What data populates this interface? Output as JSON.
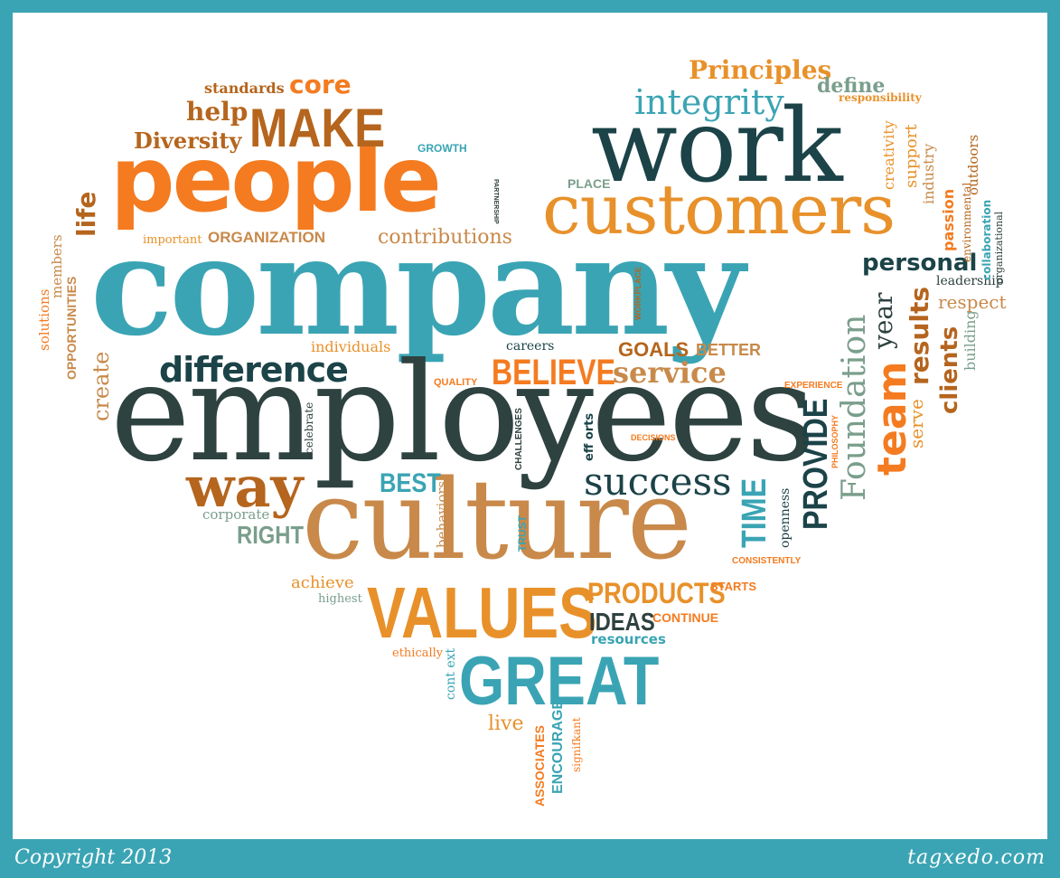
{
  "colors": {
    "frame": "#3aa4b4",
    "background": "#ffffff",
    "orange": "#f47b20",
    "dark_teal": "#1b4348",
    "teal": "#3aa4b4",
    "brown": "#b5651d",
    "tan": "#c8894a",
    "charcoal": "#2e4240",
    "sage": "#7a9e8c",
    "gold": "#e8912a"
  },
  "words": {
    "company": "company",
    "employees": "employees",
    "culture": "culture",
    "people": "people",
    "work": "work",
    "customers": "customers",
    "values": "VALUES",
    "great": "GREAT",
    "make": "MAKE",
    "difference": "difference",
    "way": "way",
    "success": "success",
    "team": "team",
    "foundation": "Foundation",
    "provide": "PROVIDE",
    "time": "TIME",
    "results": "results",
    "clients": "clients",
    "integrity": "integrity",
    "principles": "Principles",
    "personal": "personal",
    "believe": "BELIEVE",
    "service": "service",
    "products": "PRODUCTS",
    "ideas": "IDEAS",
    "best": "BEST",
    "right": "RIGHT",
    "diversity": "Diversity",
    "help": "help",
    "core": "core",
    "standards": "standards",
    "life": "life",
    "create": "create",
    "contributions": "contributions",
    "organization": "ORGANIZATION",
    "important": "important",
    "growth": "GROWTH",
    "partnership": "PARTNERSHIP",
    "place": "PLACE",
    "workplace": "WORKPLACE",
    "define": "define",
    "responsibility": "responsibility",
    "creativity": "creativity",
    "support": "support",
    "industry": "industry",
    "outdoors": "outdoors",
    "passion": "passion",
    "environmental": "environmental",
    "collaboration": "collaboration",
    "organizational": "organizational",
    "leadership": "leadership",
    "respect": "respect",
    "building": "building",
    "year": "year",
    "serve": "serve",
    "experience": "EXPERIENCE",
    "philosophy": "PHILOSOPHY",
    "goals": "GOALS",
    "better": "BETTER",
    "careers": "careers",
    "individuals": "individuals",
    "quality": "QUALITY",
    "challenges": "CHALLENGES",
    "efforts": "eff orts",
    "decisions": "DECISIONS",
    "celebrate": "celebrate",
    "behaviors": "behaviors",
    "trust": "TRUST",
    "corporate": "corporate",
    "achieve": "achieve",
    "highest": "highest",
    "openness": "openness",
    "consistently": "CONSISTENTLY",
    "starts": "STARTS",
    "continue": "CONTINUE",
    "resources": "resources",
    "ethically": "ethically",
    "context": "cont ext",
    "live": "live",
    "associates": "ASSOCIATES",
    "encourage": "ENCOURAGE",
    "significant": "signifkant",
    "solutions": "solutions",
    "members": "members",
    "opportunities": "OPPORTUNITIES"
  },
  "footer": {
    "copyright": "Copyright 2013",
    "site": "tagxedo.com"
  }
}
